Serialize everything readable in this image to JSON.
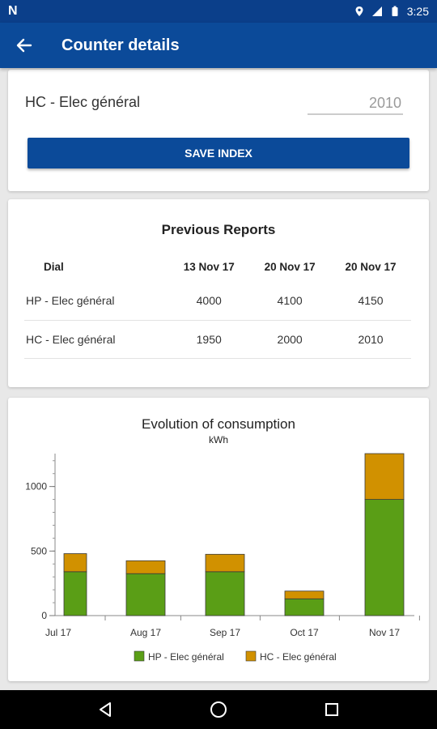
{
  "status_bar": {
    "left_logo": "N",
    "time": "3:25",
    "icons": [
      "location-icon",
      "signal-icon",
      "battery-icon"
    ]
  },
  "app_bar": {
    "title": "Counter details",
    "back_icon": "arrow-back-icon"
  },
  "index_card": {
    "counter_label": "HC - Elec général",
    "index_value": "2010",
    "save_label": "SAVE INDEX"
  },
  "reports": {
    "title": "Previous Reports",
    "headers": [
      "Dial",
      "13 Nov 17",
      "20 Nov 17",
      "20 Nov 17"
    ],
    "rows": [
      {
        "dial": "HP - Elec général",
        "values": [
          "4000",
          "4100",
          "4150"
        ]
      },
      {
        "dial": "HC - Elec général",
        "values": [
          "1950",
          "2000",
          "2010"
        ]
      }
    ]
  },
  "chart_data": {
    "type": "bar",
    "stacked": true,
    "title": "Evolution of consumption",
    "subtitle": "kWh",
    "categories": [
      "Jul 17",
      "Aug 17",
      "Sep 17",
      "Oct 17",
      "Nov 17"
    ],
    "series": [
      {
        "name": "HP - Elec général",
        "color": "#5a9e16",
        "values": [
          340,
          325,
          340,
          130,
          900
        ]
      },
      {
        "name": "HC - Elec général",
        "color": "#d19100",
        "values": [
          140,
          100,
          135,
          60,
          355
        ]
      }
    ],
    "ylim": [
      0,
      1255
    ],
    "yticks": [
      0,
      500,
      1000
    ],
    "legend": "bottom"
  },
  "nav_bar": {
    "icons": [
      "nav-back-icon",
      "nav-home-icon",
      "nav-recents-icon"
    ]
  }
}
